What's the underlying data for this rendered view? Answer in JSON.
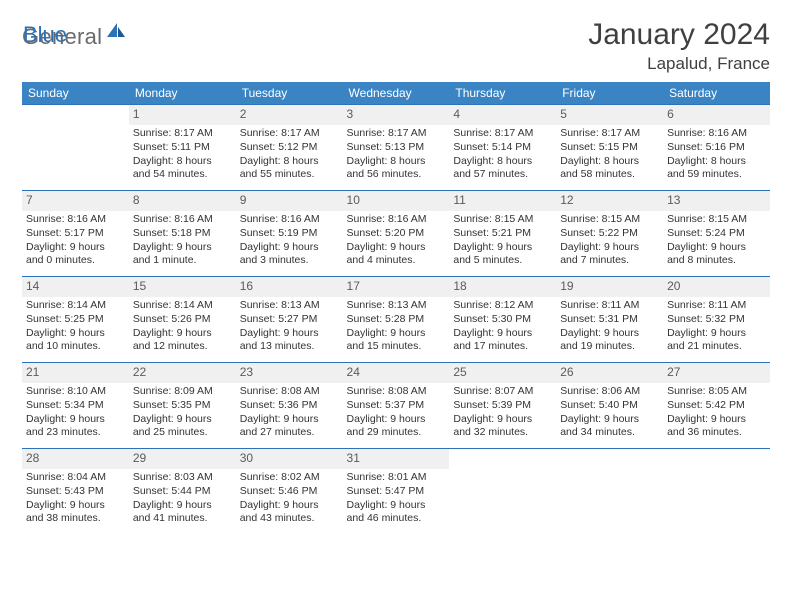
{
  "brand": {
    "part1": "General",
    "part2": "Blue"
  },
  "title": "January 2024",
  "location": "Lapalud, France",
  "colors": {
    "header_bg": "#3a84c4",
    "accent": "#2b72b8",
    "daynum_bg": "#f0f0f0",
    "text": "#333333"
  },
  "weekdays": [
    "Sunday",
    "Monday",
    "Tuesday",
    "Wednesday",
    "Thursday",
    "Friday",
    "Saturday"
  ],
  "start_weekday": 1,
  "days": [
    {
      "n": 1,
      "sunrise": "8:17 AM",
      "sunset": "5:11 PM",
      "dl1": "Daylight: 8 hours",
      "dl2": "and 54 minutes."
    },
    {
      "n": 2,
      "sunrise": "8:17 AM",
      "sunset": "5:12 PM",
      "dl1": "Daylight: 8 hours",
      "dl2": "and 55 minutes."
    },
    {
      "n": 3,
      "sunrise": "8:17 AM",
      "sunset": "5:13 PM",
      "dl1": "Daylight: 8 hours",
      "dl2": "and 56 minutes."
    },
    {
      "n": 4,
      "sunrise": "8:17 AM",
      "sunset": "5:14 PM",
      "dl1": "Daylight: 8 hours",
      "dl2": "and 57 minutes."
    },
    {
      "n": 5,
      "sunrise": "8:17 AM",
      "sunset": "5:15 PM",
      "dl1": "Daylight: 8 hours",
      "dl2": "and 58 minutes."
    },
    {
      "n": 6,
      "sunrise": "8:16 AM",
      "sunset": "5:16 PM",
      "dl1": "Daylight: 8 hours",
      "dl2": "and 59 minutes."
    },
    {
      "n": 7,
      "sunrise": "8:16 AM",
      "sunset": "5:17 PM",
      "dl1": "Daylight: 9 hours",
      "dl2": "and 0 minutes."
    },
    {
      "n": 8,
      "sunrise": "8:16 AM",
      "sunset": "5:18 PM",
      "dl1": "Daylight: 9 hours",
      "dl2": "and 1 minute."
    },
    {
      "n": 9,
      "sunrise": "8:16 AM",
      "sunset": "5:19 PM",
      "dl1": "Daylight: 9 hours",
      "dl2": "and 3 minutes."
    },
    {
      "n": 10,
      "sunrise": "8:16 AM",
      "sunset": "5:20 PM",
      "dl1": "Daylight: 9 hours",
      "dl2": "and 4 minutes."
    },
    {
      "n": 11,
      "sunrise": "8:15 AM",
      "sunset": "5:21 PM",
      "dl1": "Daylight: 9 hours",
      "dl2": "and 5 minutes."
    },
    {
      "n": 12,
      "sunrise": "8:15 AM",
      "sunset": "5:22 PM",
      "dl1": "Daylight: 9 hours",
      "dl2": "and 7 minutes."
    },
    {
      "n": 13,
      "sunrise": "8:15 AM",
      "sunset": "5:24 PM",
      "dl1": "Daylight: 9 hours",
      "dl2": "and 8 minutes."
    },
    {
      "n": 14,
      "sunrise": "8:14 AM",
      "sunset": "5:25 PM",
      "dl1": "Daylight: 9 hours",
      "dl2": "and 10 minutes."
    },
    {
      "n": 15,
      "sunrise": "8:14 AM",
      "sunset": "5:26 PM",
      "dl1": "Daylight: 9 hours",
      "dl2": "and 12 minutes."
    },
    {
      "n": 16,
      "sunrise": "8:13 AM",
      "sunset": "5:27 PM",
      "dl1": "Daylight: 9 hours",
      "dl2": "and 13 minutes."
    },
    {
      "n": 17,
      "sunrise": "8:13 AM",
      "sunset": "5:28 PM",
      "dl1": "Daylight: 9 hours",
      "dl2": "and 15 minutes."
    },
    {
      "n": 18,
      "sunrise": "8:12 AM",
      "sunset": "5:30 PM",
      "dl1": "Daylight: 9 hours",
      "dl2": "and 17 minutes."
    },
    {
      "n": 19,
      "sunrise": "8:11 AM",
      "sunset": "5:31 PM",
      "dl1": "Daylight: 9 hours",
      "dl2": "and 19 minutes."
    },
    {
      "n": 20,
      "sunrise": "8:11 AM",
      "sunset": "5:32 PM",
      "dl1": "Daylight: 9 hours",
      "dl2": "and 21 minutes."
    },
    {
      "n": 21,
      "sunrise": "8:10 AM",
      "sunset": "5:34 PM",
      "dl1": "Daylight: 9 hours",
      "dl2": "and 23 minutes."
    },
    {
      "n": 22,
      "sunrise": "8:09 AM",
      "sunset": "5:35 PM",
      "dl1": "Daylight: 9 hours",
      "dl2": "and 25 minutes."
    },
    {
      "n": 23,
      "sunrise": "8:08 AM",
      "sunset": "5:36 PM",
      "dl1": "Daylight: 9 hours",
      "dl2": "and 27 minutes."
    },
    {
      "n": 24,
      "sunrise": "8:08 AM",
      "sunset": "5:37 PM",
      "dl1": "Daylight: 9 hours",
      "dl2": "and 29 minutes."
    },
    {
      "n": 25,
      "sunrise": "8:07 AM",
      "sunset": "5:39 PM",
      "dl1": "Daylight: 9 hours",
      "dl2": "and 32 minutes."
    },
    {
      "n": 26,
      "sunrise": "8:06 AM",
      "sunset": "5:40 PM",
      "dl1": "Daylight: 9 hours",
      "dl2": "and 34 minutes."
    },
    {
      "n": 27,
      "sunrise": "8:05 AM",
      "sunset": "5:42 PM",
      "dl1": "Daylight: 9 hours",
      "dl2": "and 36 minutes."
    },
    {
      "n": 28,
      "sunrise": "8:04 AM",
      "sunset": "5:43 PM",
      "dl1": "Daylight: 9 hours",
      "dl2": "and 38 minutes."
    },
    {
      "n": 29,
      "sunrise": "8:03 AM",
      "sunset": "5:44 PM",
      "dl1": "Daylight: 9 hours",
      "dl2": "and 41 minutes."
    },
    {
      "n": 30,
      "sunrise": "8:02 AM",
      "sunset": "5:46 PM",
      "dl1": "Daylight: 9 hours",
      "dl2": "and 43 minutes."
    },
    {
      "n": 31,
      "sunrise": "8:01 AM",
      "sunset": "5:47 PM",
      "dl1": "Daylight: 9 hours",
      "dl2": "and 46 minutes."
    }
  ],
  "labels": {
    "sunrise": "Sunrise:",
    "sunset": "Sunset:"
  }
}
